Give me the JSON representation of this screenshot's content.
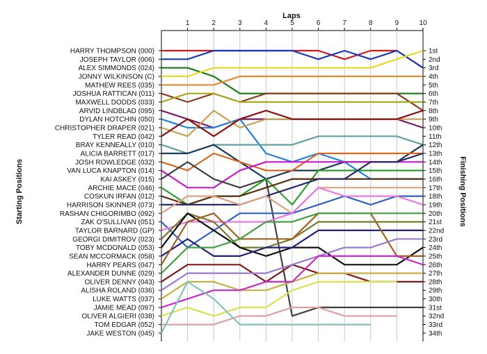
{
  "chart_data": {
    "type": "line",
    "title": "",
    "xlabel": "Laps",
    "ylabel_left": "Starting Positions",
    "ylabel_right": "Finishing Positions",
    "x": [
      1,
      2,
      3,
      4,
      5,
      6,
      7,
      8,
      9,
      10
    ],
    "y_range": [
      1,
      34
    ],
    "grid": "vertical lap lines",
    "legend": "none",
    "finishing_labels": [
      "1st",
      "2nd",
      "3rd",
      "4th",
      "5th",
      "6th",
      "7th",
      "8th",
      "9th",
      "10th",
      "11th",
      "12th",
      "13th",
      "14th",
      "15th",
      "16th",
      "17th",
      "18th",
      "19th",
      "20th",
      "21st",
      "22nd",
      "23rd",
      "24th",
      "25th",
      "26th",
      "27th",
      "28th",
      "29th",
      "30th",
      "31st",
      "32nd",
      "33rd",
      "34th"
    ],
    "series": [
      {
        "name": "HARRY THOMPSON (000)",
        "color": "#d01818",
        "positions": [
          1,
          1,
          1,
          1,
          1,
          1,
          1,
          2,
          1,
          1,
          3
        ]
      },
      {
        "name": "JOSEPH TAYLOR (006)",
        "color": "#1838b8",
        "positions": [
          2,
          2,
          1,
          1,
          1,
          1,
          2,
          1,
          2,
          1,
          3
        ]
      },
      {
        "name": "ALEX SIMMONDS (024)",
        "color": "#187818",
        "positions": [
          3,
          3,
          4,
          6,
          6,
          6,
          6,
          6,
          6,
          6,
          6
        ]
      },
      {
        "name": "JONNY WILKINSON (C)",
        "color": "#e8d820",
        "positions": [
          4,
          4,
          3,
          3,
          3,
          3,
          3,
          3,
          3,
          2,
          1
        ]
      },
      {
        "name": "MATHEW REES (035)",
        "color": "#e88830",
        "positions": [
          5,
          5,
          5,
          4,
          4,
          4,
          4,
          4,
          4,
          4,
          4
        ]
      },
      {
        "name": "JOSHUA RATTICAN (011)",
        "color": "#8a3a18",
        "positions": [
          6,
          7,
          6,
          7,
          6,
          6,
          6,
          6,
          6,
          6,
          8
        ]
      },
      {
        "name": "MAXWELL DODDS (033)",
        "color": "#a8a820",
        "positions": [
          7,
          6,
          6,
          7,
          7,
          7,
          7,
          7,
          7,
          7,
          7
        ]
      },
      {
        "name": "ARVID LINDBLAD (095)",
        "color": "#7a1860",
        "positions": [
          8,
          9,
          10,
          9,
          9,
          9,
          9,
          9,
          9,
          9,
          10
        ]
      },
      {
        "name": "DYLAN HOTCHIN (050)",
        "color": "#2080e0",
        "positions": [
          9,
          10,
          10,
          9,
          13,
          14,
          13,
          14,
          16,
          16,
          16
        ]
      },
      {
        "name": "CHRISTOPHER DRAPER (021)",
        "color": "#c8a050",
        "positions": [
          10,
          11,
          8,
          10,
          9,
          9,
          9,
          9,
          9,
          9,
          9
        ]
      },
      {
        "name": "TYLER READ (042)",
        "color": "#8a1010",
        "positions": [
          11,
          9,
          11,
          9,
          8,
          9,
          9,
          9,
          9,
          9,
          8
        ]
      },
      {
        "name": "BRAY KENNEALLY (010)",
        "color": "#60a0a0",
        "positions": [
          12,
          13,
          12,
          12,
          12,
          12,
          11,
          11,
          11,
          11,
          12
        ]
      },
      {
        "name": "ALICIA BARRETT (017)",
        "color": "#1a3858",
        "positions": [
          13,
          13,
          12,
          14,
          16,
          15,
          15,
          14,
          14,
          14,
          12
        ]
      },
      {
        "name": "JOSH ROWLEDGE (032)",
        "color": "#d86820",
        "positions": [
          14,
          15,
          13,
          14,
          15,
          15,
          13,
          13,
          13,
          13,
          13
        ]
      },
      {
        "name": "VAN LUCA KNAPTON (014)",
        "color": "#c818c8",
        "positions": [
          15,
          17,
          17,
          15,
          14,
          14,
          14,
          14,
          14,
          14,
          14
        ]
      },
      {
        "name": "KAI ASKEY (015)",
        "color": "#404040",
        "positions": [
          16,
          14,
          16,
          17,
          16,
          32,
          31,
          31,
          31,
          31,
          31
        ]
      },
      {
        "name": "ARCHIE MACE (046)",
        "color": "#2aa02a",
        "positions": [
          17,
          19,
          18,
          18,
          16,
          19,
          15,
          15,
          15,
          15,
          15
        ]
      },
      {
        "name": "COSKUN IRFAN (012)",
        "color": "#5a3010",
        "positions": [
          18,
          19,
          18,
          18,
          17,
          16,
          16,
          16,
          16,
          16,
          16
        ]
      },
      {
        "name": "HARRISON SKINNER (073)",
        "color": "#28286a",
        "positions": [
          19,
          19,
          19,
          19,
          18,
          17,
          16,
          16,
          14,
          14,
          13
        ]
      },
      {
        "name": "RASHAN CHIGORIMBO (092)",
        "color": "#e0a080",
        "positions": [
          20,
          18,
          18,
          19,
          18,
          20,
          17,
          17,
          17,
          17,
          17
        ]
      },
      {
        "name": "ZAK O'SULLIVAN (051)",
        "color": "#3060c0",
        "positions": [
          21,
          24,
          22,
          20,
          20,
          20,
          19,
          18,
          19,
          18,
          18
        ]
      },
      {
        "name": "TAYLOR BARNARD (GP)",
        "color": "#e878e0",
        "positions": [
          22,
          21,
          21,
          21,
          21,
          20,
          17,
          18,
          18,
          18,
          19
        ]
      },
      {
        "name": "GEORGI DIMITROV (023)",
        "color": "#78782a",
        "positions": [
          23,
          20,
          21,
          24,
          24,
          23,
          21,
          21,
          21,
          21,
          21
        ]
      },
      {
        "name": "TOBY MCDONALD (053)",
        "color": "#101010",
        "positions": [
          24,
          20,
          22,
          24,
          25,
          24,
          24,
          26,
          26,
          26,
          24
        ]
      },
      {
        "name": "SEAN MCCORMACK (058)",
        "color": "#202078",
        "positions": [
          25,
          23,
          25,
          25,
          24,
          24,
          22,
          22,
          22,
          22,
          22
        ]
      },
      {
        "name": "HARRY PEARS (047)",
        "color": "#a06020",
        "positions": [
          26,
          21,
          20,
          23,
          23,
          23,
          20,
          20,
          20,
          25,
          25
        ]
      },
      {
        "name": "ALEXANDER DUNNE (029)",
        "color": "#40a040",
        "positions": [
          27,
          24,
          24,
          23,
          21,
          21,
          20,
          20,
          20,
          20,
          20
        ]
      },
      {
        "name": "OLIVER DENNY (043)",
        "color": "#801818",
        "positions": [
          28,
          26,
          26,
          26,
          28,
          26,
          27,
          27,
          28,
          28,
          28
        ]
      },
      {
        "name": "ALISHA ROLAND (036)",
        "color": "#9a7ad0",
        "positions": [
          29,
          27,
          27,
          27,
          27,
          26,
          25,
          24,
          24,
          23,
          23
        ]
      },
      {
        "name": "LUKE WATTS (037)",
        "color": "#c8b040",
        "positions": [
          30,
          28,
          28,
          29,
          29,
          28,
          27,
          27,
          27,
          27,
          27
        ]
      },
      {
        "name": "JAMIE MEAD (097)",
        "color": "#cc28cc",
        "positions": [
          31,
          30,
          29,
          29,
          28,
          28,
          25,
          25,
          25,
          25,
          26
        ]
      },
      {
        "name": "OLIVER ALGIERI (038)",
        "color": "#d8e050",
        "positions": [
          32,
          31,
          32,
          31,
          31,
          29,
          28,
          28,
          28,
          28,
          null
        ]
      },
      {
        "name": "TOM EDGAR (052)",
        "color": "#e0a0a0",
        "positions": [
          33,
          33,
          33,
          32,
          32,
          31,
          31,
          32,
          32,
          32,
          null
        ]
      },
      {
        "name": "JAKE WESTON (045)",
        "color": "#80c0c0",
        "positions": [
          34,
          28,
          30,
          33,
          33,
          33,
          33,
          33,
          33,
          null,
          null
        ]
      }
    ]
  }
}
